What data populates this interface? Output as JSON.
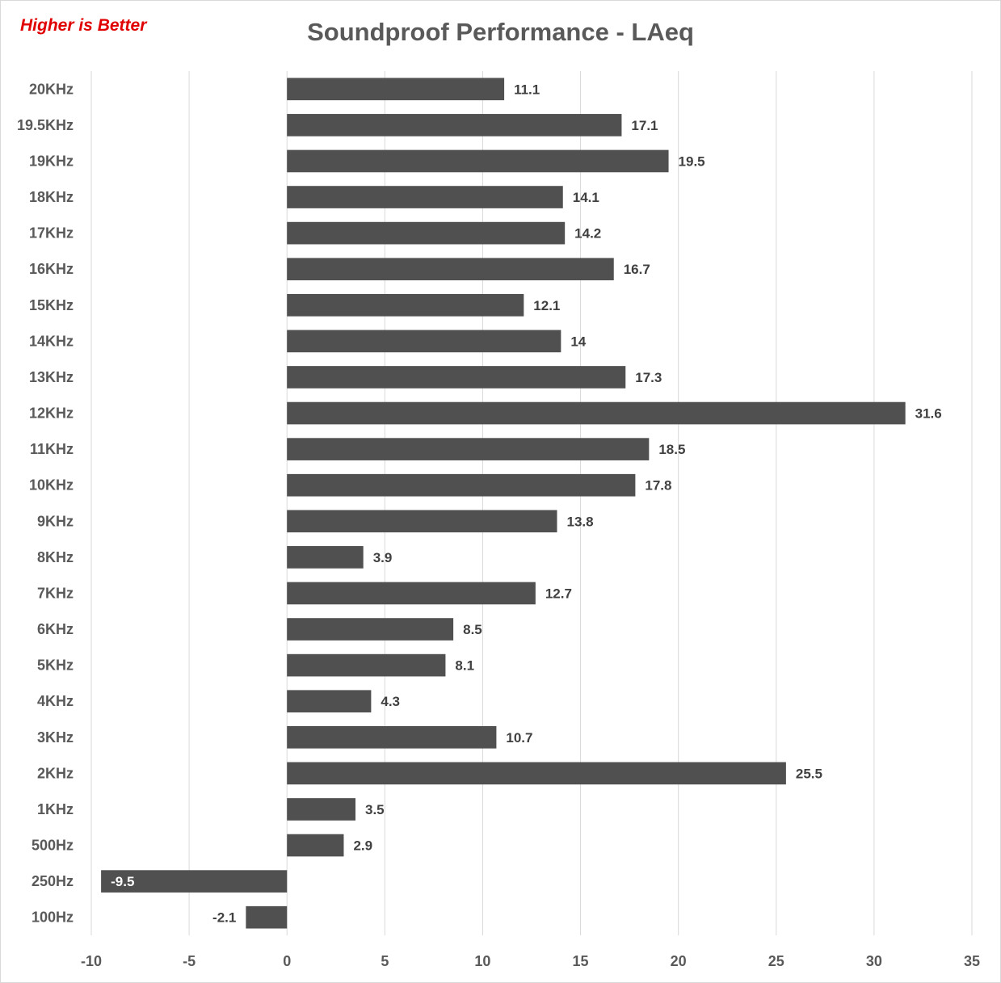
{
  "note": "Higher is Better",
  "colors": {
    "bar": "#505050",
    "grid": "#d9d9d9",
    "note": "#e00000"
  },
  "chart_data": {
    "type": "bar",
    "orientation": "horizontal",
    "title": "Soundproof Performance - LAeq",
    "xlabel": "",
    "ylabel": "",
    "xlim": [
      -10,
      35
    ],
    "xticks": [
      -10,
      -5,
      0,
      5,
      10,
      15,
      20,
      25,
      30,
      35
    ],
    "grid": true,
    "categories": [
      "20KHz",
      "19.5KHz",
      "19KHz",
      "18KHz",
      "17KHz",
      "16KHz",
      "15KHz",
      "14KHz",
      "13KHz",
      "12KHz",
      "11KHz",
      "10KHz",
      "9KHz",
      "8KHz",
      "7KHz",
      "6KHz",
      "5KHz",
      "4KHz",
      "3KHz",
      "2KHz",
      "1KHz",
      "500Hz",
      "250Hz",
      "100Hz"
    ],
    "values": [
      11.1,
      17.1,
      19.5,
      14.1,
      14.2,
      16.7,
      12.1,
      14,
      17.3,
      31.6,
      18.5,
      17.8,
      13.8,
      3.9,
      12.7,
      8.5,
      8.1,
      4.3,
      10.7,
      25.5,
      3.5,
      2.9,
      -9.5,
      -2.1
    ]
  }
}
